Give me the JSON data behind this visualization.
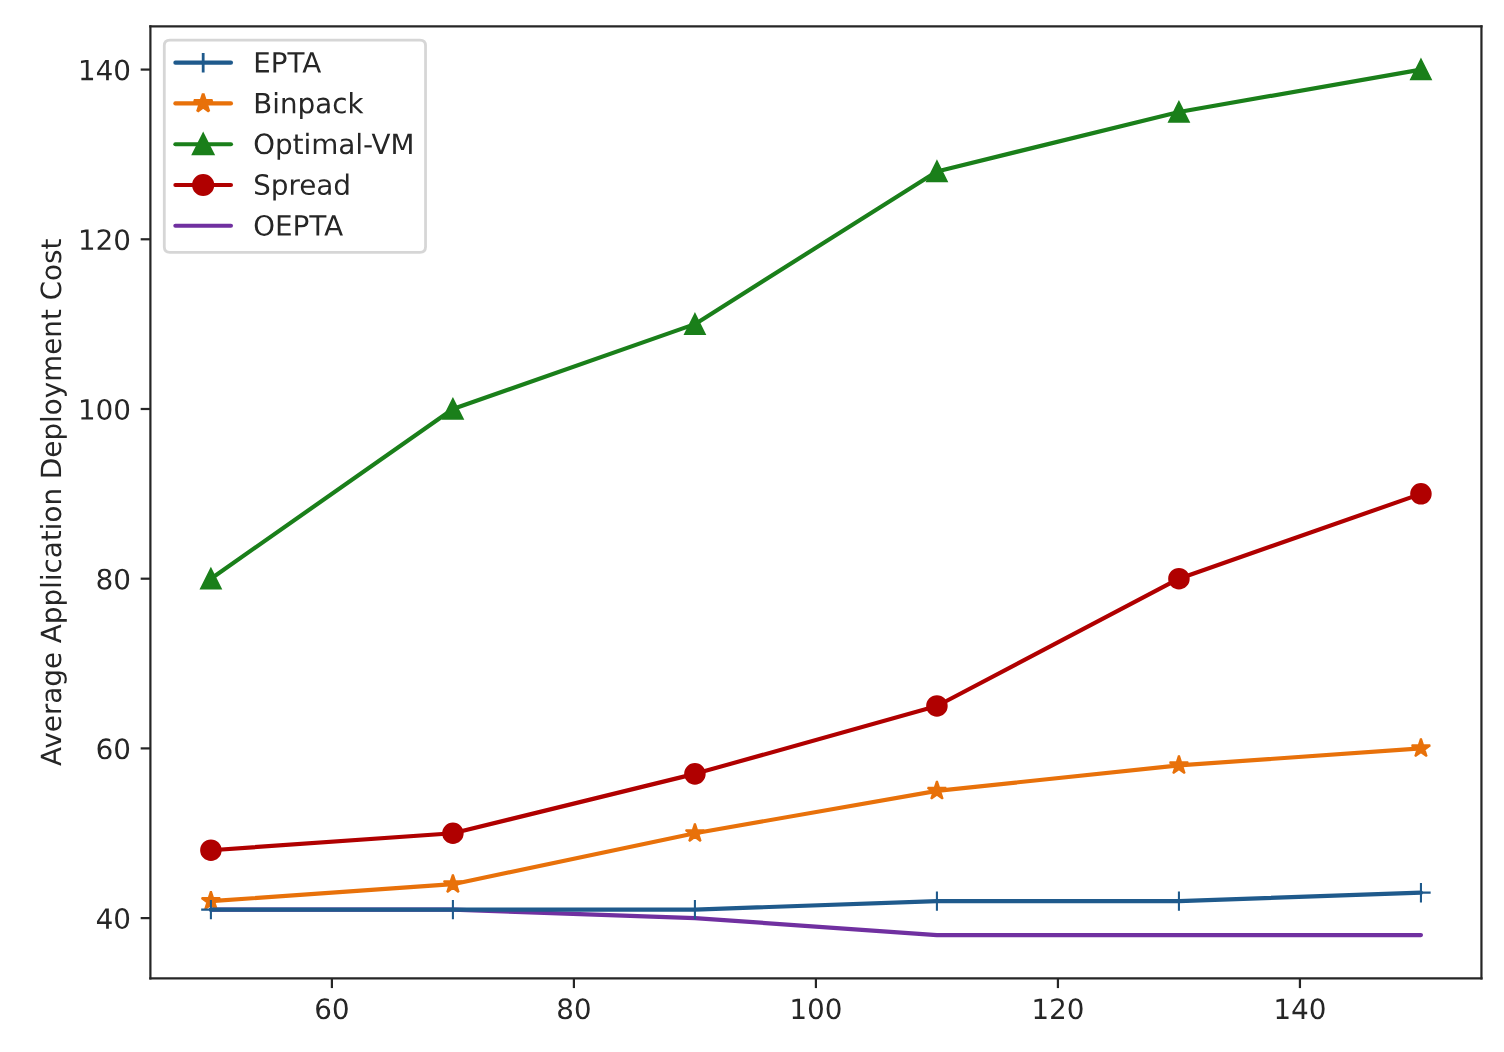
{
  "chart_data": {
    "type": "line",
    "ylabel": "Average Application Deployment Cost",
    "x": [
      50,
      70,
      90,
      110,
      130,
      150
    ],
    "series": [
      {
        "name": "EPTA",
        "color": "#1f5a8c",
        "marker": "cross",
        "values": [
          41,
          41,
          41,
          42,
          42,
          43
        ]
      },
      {
        "name": "Binpack",
        "color": "#e8710a",
        "marker": "star",
        "values": [
          42,
          44,
          50,
          55,
          58,
          60
        ]
      },
      {
        "name": "Optimal-VM",
        "color": "#1a7f1a",
        "marker": "triangle",
        "values": [
          80,
          100,
          110,
          128,
          135,
          140
        ]
      },
      {
        "name": "Spread",
        "color": "#b00000",
        "marker": "circle",
        "values": [
          48,
          50,
          57,
          65,
          80,
          90
        ]
      },
      {
        "name": "OEPTA",
        "color": "#7030a0",
        "marker": "none",
        "values": [
          41,
          41,
          40,
          38,
          38,
          38
        ]
      }
    ],
    "xlim": [
      45,
      155
    ],
    "ylim": [
      32.9,
      145.1
    ],
    "xticks": [
      60,
      80,
      100,
      120,
      140
    ],
    "yticks": [
      40,
      60,
      80,
      100,
      120,
      140
    ],
    "legend": "top left",
    "grid": false,
    "line_style": "solid"
  }
}
